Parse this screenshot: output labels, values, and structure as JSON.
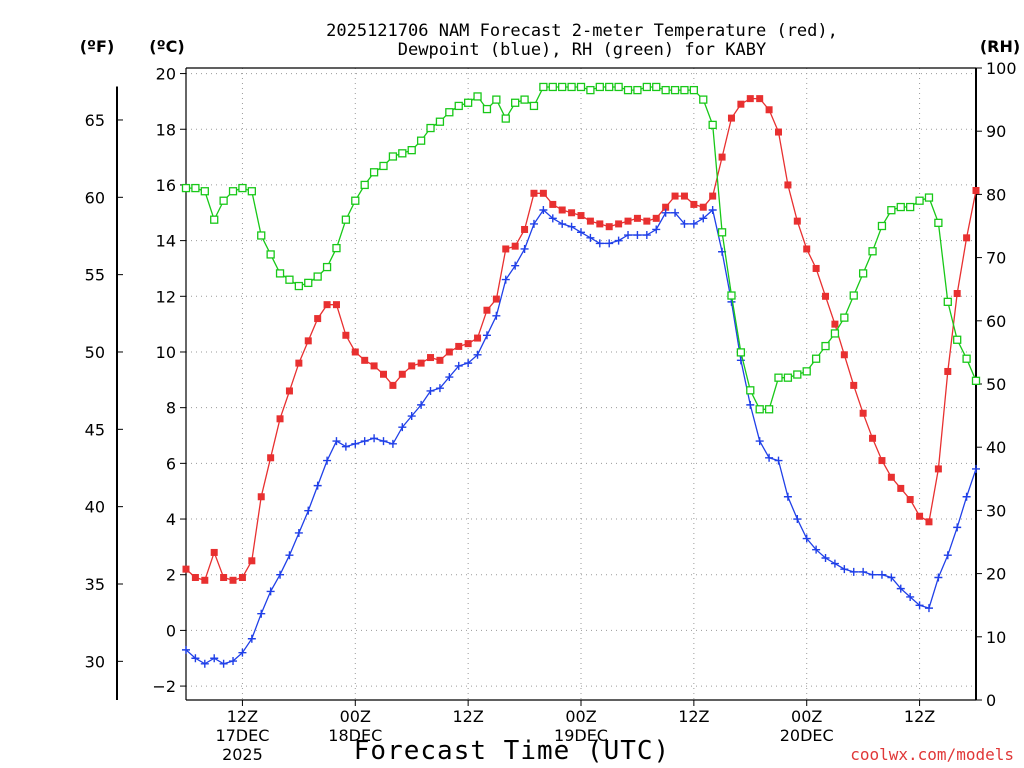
{
  "chart_data": {
    "type": "line",
    "title_line1": "2025121706 NAM Forecast 2-meter Temperature (red),",
    "title_line2": "Dewpoint (blue), RH (green) for KABY",
    "xlabel": "Forecast Time (UTC)",
    "credit": "coolwx.com/models",
    "units": {
      "fahrenheit": "(ºF)",
      "celsius": "(ºC)",
      "rh": "(RH)"
    },
    "x_range_hours": [
      6,
      90
    ],
    "x_ticks": [
      {
        "h": 12,
        "lines": [
          "12Z",
          "17DEC",
          "2025"
        ]
      },
      {
        "h": 24,
        "lines": [
          "00Z",
          "18DEC"
        ]
      },
      {
        "h": 36,
        "lines": [
          "12Z"
        ]
      },
      {
        "h": 48,
        "lines": [
          "00Z",
          "19DEC"
        ]
      },
      {
        "h": 60,
        "lines": [
          "12Z"
        ]
      },
      {
        "h": 72,
        "lines": [
          "00Z",
          "20DEC"
        ]
      },
      {
        "h": 84,
        "lines": [
          "12Z"
        ]
      }
    ],
    "y_celsius": {
      "range": [
        -2.5,
        20.2
      ],
      "ticks": [
        "−2",
        "0",
        "2",
        "4",
        "6",
        "8",
        "10",
        "12",
        "14",
        "16",
        "18",
        "20"
      ]
    },
    "y_fahrenheit": {
      "ticks": [
        "30",
        "35",
        "40",
        "45",
        "50",
        "55",
        "60",
        "65"
      ]
    },
    "y_rh": {
      "range": [
        0,
        100
      ],
      "ticks": [
        "0",
        "10",
        "20",
        "30",
        "40",
        "50",
        "60",
        "70",
        "80",
        "90",
        "100"
      ]
    },
    "grid": true,
    "colors": {
      "temperature": "#e83030",
      "dewpoint": "#2040e8",
      "rh": "#18c818"
    },
    "x_hours": [
      6,
      7,
      8,
      9,
      10,
      11,
      12,
      13,
      14,
      15,
      16,
      17,
      18,
      19,
      20,
      21,
      22,
      23,
      24,
      25,
      26,
      27,
      28,
      29,
      30,
      31,
      32,
      33,
      34,
      35,
      36,
      37,
      38,
      39,
      40,
      41,
      42,
      43,
      44,
      45,
      46,
      47,
      48,
      49,
      50,
      51,
      52,
      53,
      54,
      55,
      56,
      57,
      58,
      59,
      60,
      61,
      62,
      63,
      64,
      65,
      66,
      67,
      68,
      69,
      70,
      71,
      72,
      73,
      74,
      75,
      76,
      77,
      78,
      79,
      80,
      81,
      82,
      83,
      84,
      85,
      86,
      87,
      88,
      89,
      90
    ],
    "series": [
      {
        "name": "Temperature",
        "unit": "C",
        "values": [
          2.2,
          1.9,
          1.8,
          2.8,
          1.9,
          1.8,
          1.9,
          2.5,
          4.8,
          6.2,
          7.6,
          8.6,
          9.6,
          10.4,
          11.2,
          11.7,
          11.7,
          10.6,
          10.0,
          9.7,
          9.5,
          9.2,
          8.8,
          9.2,
          9.5,
          9.6,
          9.8,
          9.7,
          10.0,
          10.2,
          10.3,
          10.5,
          11.5,
          11.9,
          13.7,
          13.8,
          14.4,
          15.7,
          15.7,
          15.3,
          15.1,
          15.0,
          14.9,
          14.7,
          14.6,
          14.5,
          14.6,
          14.7,
          14.8,
          14.7,
          14.8,
          15.2,
          15.6,
          15.6,
          15.3,
          15.2,
          15.6,
          17.0,
          18.4,
          18.9,
          19.1,
          19.1,
          18.7,
          17.9,
          16.0,
          14.7,
          13.7,
          13.0,
          12.0,
          11.0,
          9.9,
          8.8,
          7.8,
          6.9,
          6.1,
          5.5,
          5.1,
          4.7,
          4.1,
          3.9,
          5.8,
          9.3,
          12.1,
          14.1,
          15.8
        ]
      },
      {
        "name": "Dewpoint",
        "unit": "C",
        "values": [
          -0.7,
          -1.0,
          -1.2,
          -1.0,
          -1.2,
          -1.1,
          -0.8,
          -0.3,
          0.6,
          1.4,
          2.0,
          2.7,
          3.5,
          4.3,
          5.2,
          6.1,
          6.8,
          6.6,
          6.7,
          6.8,
          6.9,
          6.8,
          6.7,
          7.3,
          7.7,
          8.1,
          8.6,
          8.7,
          9.1,
          9.5,
          9.6,
          9.9,
          10.6,
          11.3,
          12.6,
          13.1,
          13.7,
          14.6,
          15.1,
          14.8,
          14.6,
          14.5,
          14.3,
          14.1,
          13.9,
          13.9,
          14.0,
          14.2,
          14.2,
          14.2,
          14.4,
          15.0,
          15.0,
          14.6,
          14.6,
          14.8,
          15.1,
          13.6,
          11.8,
          9.7,
          8.1,
          6.8,
          6.2,
          6.1,
          4.8,
          4.0,
          3.3,
          2.9,
          2.6,
          2.4,
          2.2,
          2.1,
          2.1,
          2.0,
          2.0,
          1.9,
          1.5,
          1.2,
          0.9,
          0.8,
          1.9,
          2.7,
          3.7,
          4.8,
          5.8
        ]
      },
      {
        "name": "RH",
        "unit": "%",
        "values": [
          81,
          81,
          80.5,
          76,
          79,
          80.5,
          81,
          80.5,
          73.5,
          70.5,
          67.5,
          66.5,
          65.5,
          66,
          67,
          68.5,
          71.5,
          76,
          79,
          81.5,
          83.5,
          84.5,
          86,
          86.5,
          87,
          88.5,
          90.5,
          91.5,
          93,
          94,
          94.5,
          95.5,
          93.5,
          95,
          92,
          94.5,
          95,
          94,
          97,
          97,
          97,
          97,
          97,
          96.5,
          97,
          97,
          97,
          96.5,
          96.5,
          97,
          97,
          96.5,
          96.5,
          96.5,
          96.5,
          95,
          91,
          74,
          64,
          55,
          49,
          46,
          46,
          51,
          51,
          51.5,
          52,
          54,
          56,
          58,
          60.5,
          64,
          67.5,
          71,
          75,
          77.5,
          78,
          78,
          79,
          79.5,
          75.5,
          63,
          57,
          54,
          50.5
        ]
      }
    ]
  }
}
